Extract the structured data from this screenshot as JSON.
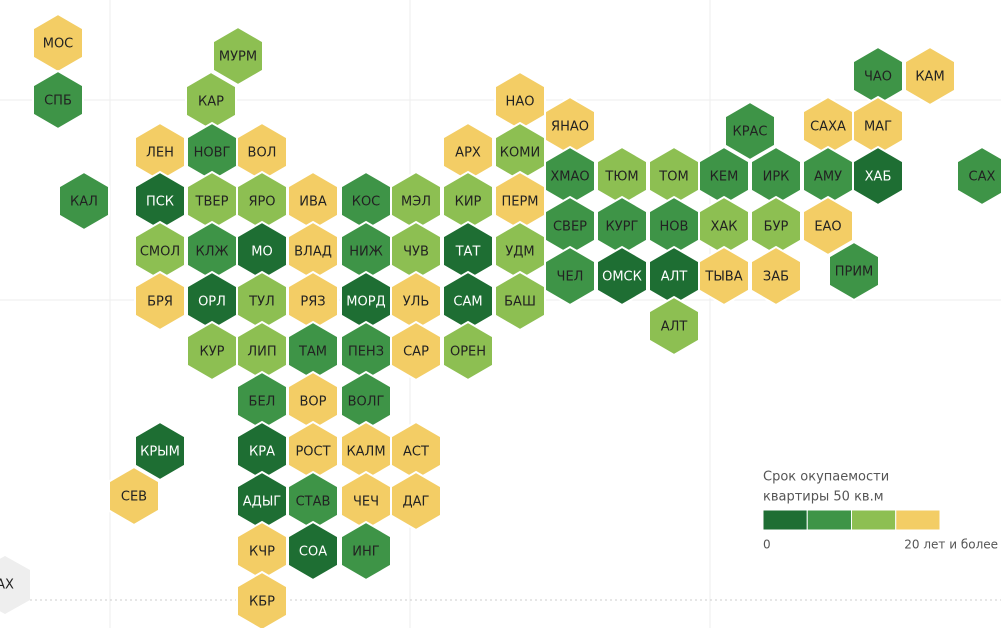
{
  "map": {
    "inset_label": "АХ",
    "regions": [
      {
        "label": "МОС",
        "color": "#f3cd65"
      },
      {
        "label": "СПБ",
        "color": "#3e9447"
      },
      {
        "label": "МУРМ",
        "color": "#8dbf52"
      },
      {
        "label": "КАР",
        "color": "#8dbf52"
      },
      {
        "label": "НАО",
        "color": "#f3cd65"
      },
      {
        "label": "ЧАО",
        "color": "#3e9447"
      },
      {
        "label": "КАМ",
        "color": "#f3cd65"
      },
      {
        "label": "ЯНАО",
        "color": "#f3cd65"
      },
      {
        "label": "КРАС",
        "color": "#3e9447"
      },
      {
        "label": "САХА",
        "color": "#f3cd65"
      },
      {
        "label": "МАГ",
        "color": "#f3cd65"
      },
      {
        "label": "ЛЕН",
        "color": "#f3cd65"
      },
      {
        "label": "НОВГ",
        "color": "#3e9447"
      },
      {
        "label": "ВОЛ",
        "color": "#f3cd65"
      },
      {
        "label": "АРХ",
        "color": "#f3cd65"
      },
      {
        "label": "КОМИ",
        "color": "#8dbf52"
      },
      {
        "label": "КАЛ",
        "color": "#3e9447"
      },
      {
        "label": "ПСК",
        "color": "#1e6e33"
      },
      {
        "label": "ТВЕР",
        "color": "#8dbf52"
      },
      {
        "label": "ЯРО",
        "color": "#8dbf52"
      },
      {
        "label": "ИВА",
        "color": "#f3cd65"
      },
      {
        "label": "КОС",
        "color": "#3e9447"
      },
      {
        "label": "МЭЛ",
        "color": "#8dbf52"
      },
      {
        "label": "КИР",
        "color": "#8dbf52"
      },
      {
        "label": "ПЕРМ",
        "color": "#f3cd65"
      },
      {
        "label": "ХМАО",
        "color": "#3e9447"
      },
      {
        "label": "ТЮМ",
        "color": "#8dbf52"
      },
      {
        "label": "ТОМ",
        "color": "#8dbf52"
      },
      {
        "label": "КЕМ",
        "color": "#3e9447"
      },
      {
        "label": "ИРК",
        "color": "#3e9447"
      },
      {
        "label": "АМУ",
        "color": "#3e9447"
      },
      {
        "label": "ХАБ",
        "color": "#1e6e33"
      },
      {
        "label": "САХ",
        "color": "#3e9447"
      },
      {
        "label": "СМОЛ",
        "color": "#8dbf52"
      },
      {
        "label": "КЛЖ",
        "color": "#3e9447"
      },
      {
        "label": "МО",
        "color": "#1e6e33"
      },
      {
        "label": "ВЛАД",
        "color": "#f3cd65"
      },
      {
        "label": "НИЖ",
        "color": "#3e9447"
      },
      {
        "label": "ЧУВ",
        "color": "#8dbf52"
      },
      {
        "label": "ТАТ",
        "color": "#1e6e33"
      },
      {
        "label": "УДМ",
        "color": "#8dbf52"
      },
      {
        "label": "СВЕР",
        "color": "#3e9447"
      },
      {
        "label": "КУРГ",
        "color": "#3e9447"
      },
      {
        "label": "НОВ",
        "color": "#3e9447"
      },
      {
        "label": "ХАК",
        "color": "#8dbf52"
      },
      {
        "label": "БУР",
        "color": "#8dbf52"
      },
      {
        "label": "ЕАО",
        "color": "#f3cd65"
      },
      {
        "label": "ЧЕЛ",
        "color": "#3e9447"
      },
      {
        "label": "ОМСК",
        "color": "#1e6e33"
      },
      {
        "label": "АЛТ",
        "color": "#1e6e33"
      },
      {
        "label": "ТЫВА",
        "color": "#f3cd65"
      },
      {
        "label": "ЗАБ",
        "color": "#f3cd65"
      },
      {
        "label": "ПРИМ",
        "color": "#3e9447"
      },
      {
        "label": "АЛТ",
        "color": "#8dbf52"
      },
      {
        "label": "БРЯ",
        "color": "#f3cd65"
      },
      {
        "label": "ОРЛ",
        "color": "#1e6e33"
      },
      {
        "label": "ТУЛ",
        "color": "#8dbf52"
      },
      {
        "label": "РЯЗ",
        "color": "#f3cd65"
      },
      {
        "label": "МОРД",
        "color": "#1e6e33"
      },
      {
        "label": "УЛЬ",
        "color": "#f3cd65"
      },
      {
        "label": "САМ",
        "color": "#1e6e33"
      },
      {
        "label": "БАШ",
        "color": "#8dbf52"
      },
      {
        "label": "КУР",
        "color": "#8dbf52"
      },
      {
        "label": "ЛИП",
        "color": "#8dbf52"
      },
      {
        "label": "ТАМ",
        "color": "#3e9447"
      },
      {
        "label": "ПЕНЗ",
        "color": "#3e9447"
      },
      {
        "label": "САР",
        "color": "#f3cd65"
      },
      {
        "label": "ОРЕН",
        "color": "#8dbf52"
      },
      {
        "label": "БЕЛ",
        "color": "#3e9447"
      },
      {
        "label": "ВОР",
        "color": "#f3cd65"
      },
      {
        "label": "ВОЛГ",
        "color": "#3e9447"
      },
      {
        "label": "КРЫМ",
        "color": "#1e6e33"
      },
      {
        "label": "СЕВ",
        "color": "#f3cd65"
      },
      {
        "label": "КРА",
        "color": "#1e6e33"
      },
      {
        "label": "РОСТ",
        "color": "#f3cd65"
      },
      {
        "label": "КАЛМ",
        "color": "#f3cd65"
      },
      {
        "label": "АСТ",
        "color": "#f3cd65"
      },
      {
        "label": "АДЫГ",
        "color": "#1e6e33"
      },
      {
        "label": "СТАВ",
        "color": "#3e9447"
      },
      {
        "label": "ЧЕЧ",
        "color": "#f3cd65"
      },
      {
        "label": "ДАГ",
        "color": "#f3cd65"
      },
      {
        "label": "КЧР",
        "color": "#f3cd65"
      },
      {
        "label": "СОА",
        "color": "#1e6e33"
      },
      {
        "label": "ИНГ",
        "color": "#3e9447"
      },
      {
        "label": "КБР",
        "color": "#f3cd65"
      }
    ],
    "legend": {
      "title_lines": [
        "Срок окупаемости",
        "квартиры 50 кв.м"
      ],
      "colors": [
        "#1e6e33",
        "#3e9447",
        "#8dbf52",
        "#f3cd65"
      ],
      "min_label": "0",
      "max_label": "20 лет и более"
    }
  }
}
